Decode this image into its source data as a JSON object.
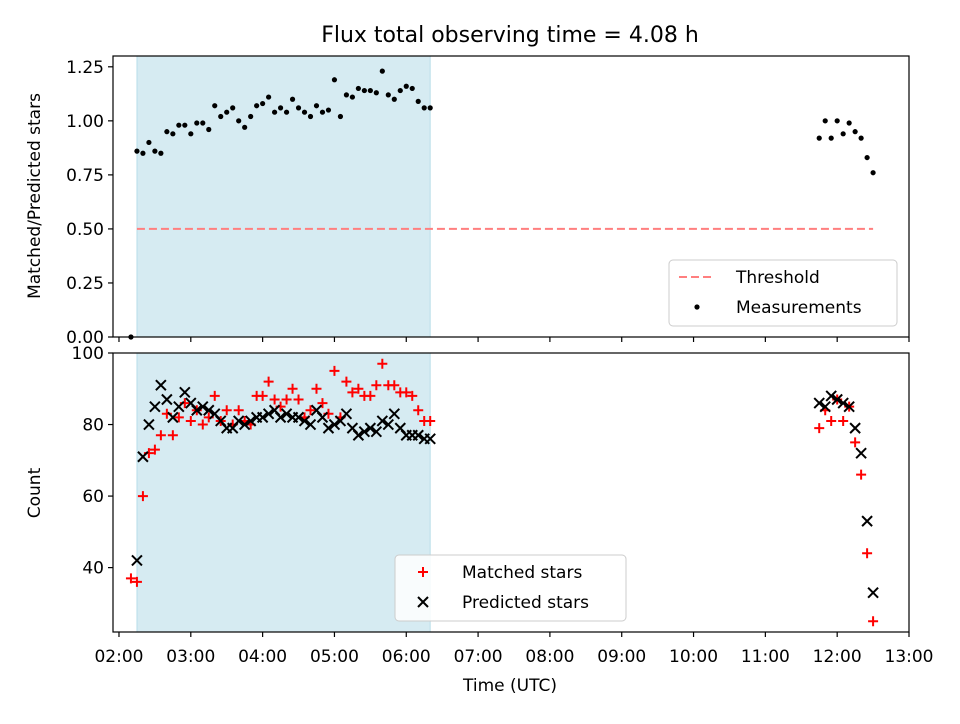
{
  "chart_data": {
    "title": "Flux total observing time = 4.08 h",
    "x_axis": {
      "label": "Time (UTC)",
      "range": [
        "01:55",
        "13:00"
      ],
      "ticks": [
        "02:00",
        "03:00",
        "04:00",
        "05:00",
        "06:00",
        "07:00",
        "08:00",
        "09:00",
        "10:00",
        "11:00",
        "12:00",
        "13:00"
      ]
    },
    "shaded_interval": {
      "start": "02:15",
      "end": "06:20",
      "color": "#add8e6",
      "alpha": 0.5
    },
    "panels": [
      {
        "type": "scatter",
        "ylabel": "Matched/Predicted stars",
        "ylim": [
          0,
          1.3
        ],
        "yticks": [
          "0.00",
          "0.25",
          "0.50",
          "0.75",
          "1.00",
          "1.25"
        ],
        "legend_position": "lower-right",
        "series": [
          {
            "name": "Threshold",
            "style": "dashed-line",
            "color": "#ff7f7f",
            "points": [
              [
                "02:15",
                0.5
              ],
              [
                "12:30",
                0.5
              ]
            ]
          },
          {
            "name": "Measurements",
            "style": "dot",
            "color": "#000000",
            "points": [
              [
                "02:10",
                0.0
              ],
              [
                "02:15",
                0.86
              ],
              [
                "02:20",
                0.85
              ],
              [
                "02:25",
                0.9
              ],
              [
                "02:30",
                0.86
              ],
              [
                "02:35",
                0.85
              ],
              [
                "02:40",
                0.95
              ],
              [
                "02:45",
                0.94
              ],
              [
                "02:50",
                0.98
              ],
              [
                "02:55",
                0.98
              ],
              [
                "03:00",
                0.94
              ],
              [
                "03:05",
                0.99
              ],
              [
                "03:10",
                0.99
              ],
              [
                "03:15",
                0.96
              ],
              [
                "03:20",
                1.07
              ],
              [
                "03:25",
                1.02
              ],
              [
                "03:30",
                1.04
              ],
              [
                "03:35",
                1.06
              ],
              [
                "03:40",
                1.0
              ],
              [
                "03:45",
                0.97
              ],
              [
                "03:50",
                1.02
              ],
              [
                "03:55",
                1.07
              ],
              [
                "04:00",
                1.08
              ],
              [
                "04:05",
                1.11
              ],
              [
                "04:10",
                1.04
              ],
              [
                "04:15",
                1.06
              ],
              [
                "04:20",
                1.04
              ],
              [
                "04:25",
                1.1
              ],
              [
                "04:30",
                1.06
              ],
              [
                "04:35",
                1.04
              ],
              [
                "04:40",
                1.02
              ],
              [
                "04:45",
                1.07
              ],
              [
                "04:50",
                1.04
              ],
              [
                "04:55",
                1.05
              ],
              [
                "05:00",
                1.19
              ],
              [
                "05:05",
                1.02
              ],
              [
                "05:10",
                1.12
              ],
              [
                "05:15",
                1.11
              ],
              [
                "05:20",
                1.15
              ],
              [
                "05:25",
                1.14
              ],
              [
                "05:30",
                1.14
              ],
              [
                "05:35",
                1.13
              ],
              [
                "05:40",
                1.23
              ],
              [
                "05:45",
                1.12
              ],
              [
                "05:50",
                1.1
              ],
              [
                "05:55",
                1.14
              ],
              [
                "06:00",
                1.16
              ],
              [
                "06:05",
                1.15
              ],
              [
                "06:10",
                1.09
              ],
              [
                "06:15",
                1.06
              ],
              [
                "06:20",
                1.06
              ],
              [
                "11:45",
                0.92
              ],
              [
                "11:50",
                1.0
              ],
              [
                "11:55",
                0.92
              ],
              [
                "12:00",
                1.0
              ],
              [
                "12:05",
                0.94
              ],
              [
                "12:10",
                0.99
              ],
              [
                "12:15",
                0.95
              ],
              [
                "12:20",
                0.92
              ],
              [
                "12:25",
                0.83
              ],
              [
                "12:30",
                0.76
              ]
            ]
          }
        ]
      },
      {
        "type": "scatter",
        "ylabel": "Count",
        "ylim": [
          22,
          100
        ],
        "yticks": [
          "40",
          "60",
          "80",
          "100"
        ],
        "legend_position": "lower-center",
        "series": [
          {
            "name": "Matched stars",
            "marker": "+",
            "color": "#ff0000",
            "points": [
              [
                "02:10",
                37
              ],
              [
                "02:15",
                36
              ],
              [
                "02:20",
                60
              ],
              [
                "02:25",
                72
              ],
              [
                "02:30",
                73
              ],
              [
                "02:35",
                77
              ],
              [
                "02:40",
                83
              ],
              [
                "02:45",
                77
              ],
              [
                "02:50",
                82
              ],
              [
                "02:55",
                86
              ],
              [
                "03:00",
                81
              ],
              [
                "03:05",
                84
              ],
              [
                "03:10",
                80
              ],
              [
                "03:15",
                82
              ],
              [
                "03:20",
                88
              ],
              [
                "03:25",
                81
              ],
              [
                "03:30",
                84
              ],
              [
                "03:35",
                80
              ],
              [
                "03:40",
                84
              ],
              [
                "03:45",
                81
              ],
              [
                "03:50",
                80
              ],
              [
                "03:55",
                88
              ],
              [
                "04:00",
                88
              ],
              [
                "04:05",
                92
              ],
              [
                "04:10",
                87
              ],
              [
                "04:15",
                85
              ],
              [
                "04:20",
                87
              ],
              [
                "04:25",
                90
              ],
              [
                "04:30",
                87
              ],
              [
                "04:35",
                82
              ],
              [
                "04:40",
                84
              ],
              [
                "04:45",
                90
              ],
              [
                "04:50",
                86
              ],
              [
                "04:55",
                83
              ],
              [
                "05:00",
                95
              ],
              [
                "05:05",
                82
              ],
              [
                "05:10",
                92
              ],
              [
                "05:15",
                89
              ],
              [
                "05:20",
                90
              ],
              [
                "05:25",
                88
              ],
              [
                "05:30",
                88
              ],
              [
                "05:35",
                91
              ],
              [
                "05:40",
                97
              ],
              [
                "05:45",
                91
              ],
              [
                "05:50",
                91
              ],
              [
                "05:55",
                89
              ],
              [
                "06:00",
                89
              ],
              [
                "06:05",
                88
              ],
              [
                "06:10",
                84
              ],
              [
                "06:15",
                81
              ],
              [
                "06:20",
                81
              ],
              [
                "11:45",
                79
              ],
              [
                "11:50",
                84
              ],
              [
                "11:55",
                81
              ],
              [
                "12:00",
                87
              ],
              [
                "12:05",
                81
              ],
              [
                "12:10",
                85
              ],
              [
                "12:15",
                75
              ],
              [
                "12:20",
                66
              ],
              [
                "12:25",
                44
              ],
              [
                "12:30",
                25
              ]
            ]
          },
          {
            "name": "Predicted stars",
            "marker": "x",
            "color": "#000000",
            "points": [
              [
                "02:15",
                42
              ],
              [
                "02:20",
                71
              ],
              [
                "02:25",
                80
              ],
              [
                "02:30",
                85
              ],
              [
                "02:35",
                91
              ],
              [
                "02:40",
                87
              ],
              [
                "02:45",
                82
              ],
              [
                "02:50",
                85
              ],
              [
                "02:55",
                89
              ],
              [
                "03:00",
                86
              ],
              [
                "03:05",
                84
              ],
              [
                "03:10",
                85
              ],
              [
                "03:15",
                84
              ],
              [
                "03:20",
                83
              ],
              [
                "03:25",
                81
              ],
              [
                "03:30",
                79
              ],
              [
                "03:35",
                79
              ],
              [
                "03:40",
                81
              ],
              [
                "03:45",
                80
              ],
              [
                "03:50",
                81
              ],
              [
                "03:55",
                82
              ],
              [
                "04:00",
                82
              ],
              [
                "04:05",
                83
              ],
              [
                "04:10",
                84
              ],
              [
                "04:15",
                82
              ],
              [
                "04:20",
                83
              ],
              [
                "04:25",
                82
              ],
              [
                "04:30",
                82
              ],
              [
                "04:35",
                81
              ],
              [
                "04:40",
                80
              ],
              [
                "04:45",
                84
              ],
              [
                "04:50",
                82
              ],
              [
                "04:55",
                79
              ],
              [
                "05:00",
                80
              ],
              [
                "05:05",
                81
              ],
              [
                "05:10",
                83
              ],
              [
                "05:15",
                79
              ],
              [
                "05:20",
                77
              ],
              [
                "05:25",
                78
              ],
              [
                "05:30",
                79
              ],
              [
                "05:35",
                78
              ],
              [
                "05:40",
                81
              ],
              [
                "05:45",
                80
              ],
              [
                "05:50",
                83
              ],
              [
                "05:55",
                79
              ],
              [
                "06:00",
                77
              ],
              [
                "06:05",
                77
              ],
              [
                "06:10",
                77
              ],
              [
                "06:15",
                76
              ],
              [
                "06:20",
                76
              ],
              [
                "11:45",
                86
              ],
              [
                "11:50",
                85
              ],
              [
                "11:55",
                88
              ],
              [
                "12:00",
                87
              ],
              [
                "12:05",
                86
              ],
              [
                "12:10",
                85
              ],
              [
                "12:15",
                79
              ],
              [
                "12:20",
                72
              ],
              [
                "12:25",
                53
              ],
              [
                "12:30",
                33
              ]
            ]
          }
        ]
      }
    ]
  }
}
